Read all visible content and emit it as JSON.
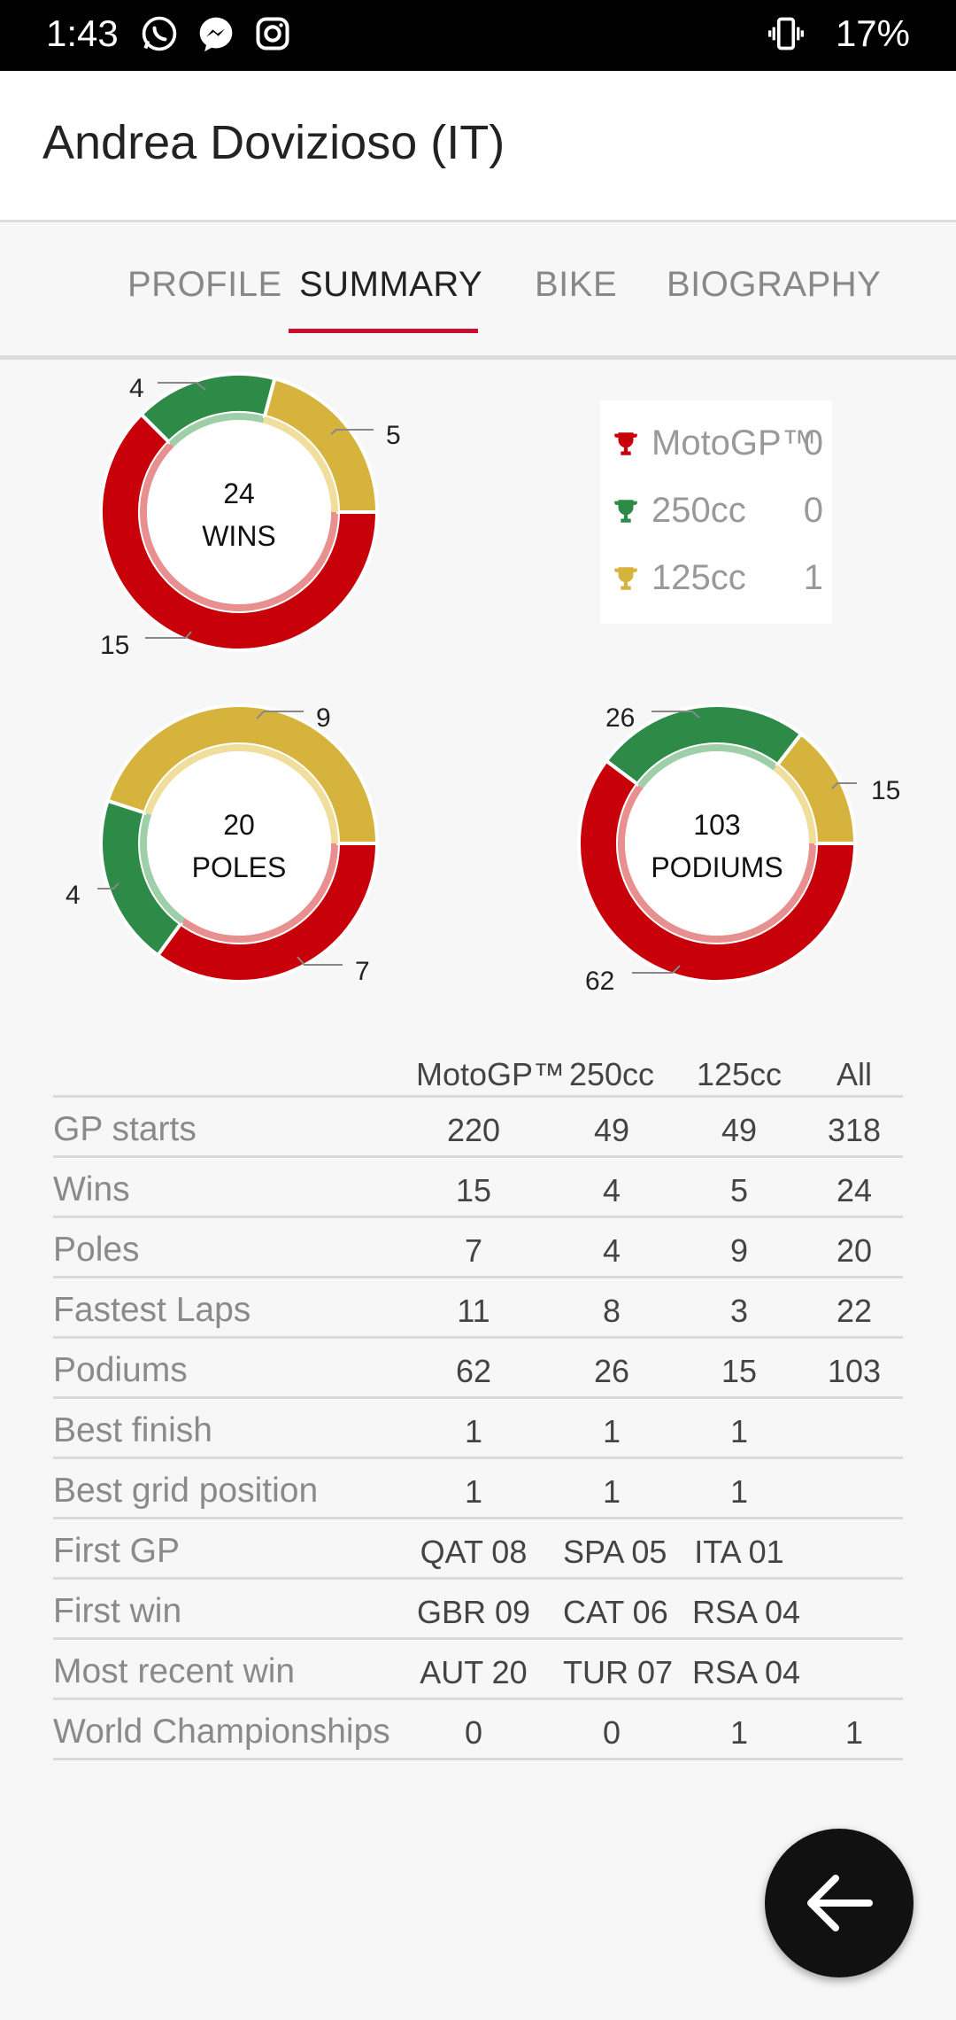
{
  "status_bar": {
    "time": "1:43",
    "icons": [
      "whatsapp-icon",
      "messenger-icon",
      "instagram-icon",
      "vibrate-icon"
    ],
    "battery": "17%"
  },
  "header": {
    "title": "Andrea Dovizioso (IT)"
  },
  "tabs": [
    {
      "label": "PROFILE",
      "active": false
    },
    {
      "label": "SUMMARY",
      "active": true
    },
    {
      "label": "BIKE",
      "active": false
    },
    {
      "label": "BIOGRAPHY",
      "active": false
    }
  ],
  "colors": {
    "motogp": "#c8000a",
    "c250": "#2e8b47",
    "c125": "#d6b33c",
    "accent": "#c8102e"
  },
  "chart_data": [
    {
      "type": "pie",
      "title": "24 WINS",
      "center_value": "24",
      "center_label": "WINS",
      "categories": [
        "MotoGP™",
        "250cc",
        "125cc"
      ],
      "values": [
        15,
        4,
        5
      ]
    },
    {
      "type": "pie",
      "title": "20 POLES",
      "center_value": "20",
      "center_label": "POLES",
      "categories": [
        "MotoGP™",
        "250cc",
        "125cc"
      ],
      "values": [
        7,
        4,
        9
      ]
    },
    {
      "type": "pie",
      "title": "103 PODIUMS",
      "center_value": "103",
      "center_label": "PODIUMS",
      "categories": [
        "MotoGP™",
        "250cc",
        "125cc"
      ],
      "values": [
        62,
        26,
        15
      ]
    }
  ],
  "legend": {
    "title": "World Championships",
    "items": [
      {
        "name": "MotoGP™",
        "value": "0",
        "color": "#c8000a",
        "icon": "trophy-icon"
      },
      {
        "name": "250cc",
        "value": "0",
        "color": "#2e8b47",
        "icon": "trophy-icon"
      },
      {
        "name": "125cc",
        "value": "1",
        "color": "#d6b33c",
        "icon": "trophy-icon"
      }
    ]
  },
  "table": {
    "headers": [
      "MotoGP™",
      "250cc",
      "125cc",
      "All"
    ],
    "rows": [
      {
        "label": "GP starts",
        "cells": [
          "220",
          "49",
          "49",
          "318"
        ]
      },
      {
        "label": "Wins",
        "cells": [
          "15",
          "4",
          "5",
          "24"
        ]
      },
      {
        "label": "Poles",
        "cells": [
          "7",
          "4",
          "9",
          "20"
        ]
      },
      {
        "label": "Fastest Laps",
        "cells": [
          "11",
          "8",
          "3",
          "22"
        ]
      },
      {
        "label": "Podiums",
        "cells": [
          "62",
          "26",
          "15",
          "103"
        ]
      },
      {
        "label": "Best finish",
        "cells": [
          "1",
          "1",
          "1",
          ""
        ]
      },
      {
        "label": "Best grid position",
        "cells": [
          "1",
          "1",
          "1",
          ""
        ]
      },
      {
        "label": "First GP",
        "cells": [
          "QAT 08",
          "SPA 05",
          "ITA 01",
          ""
        ]
      },
      {
        "label": "First win",
        "cells": [
          "GBR 09",
          "CAT 06",
          "RSA 04",
          ""
        ]
      },
      {
        "label": "Most recent win",
        "cells": [
          "AUT 20",
          "TUR 07",
          "RSA 04",
          ""
        ]
      },
      {
        "label": "World Championships",
        "cells": [
          "0",
          "0",
          "1",
          "1"
        ]
      }
    ]
  },
  "fab": {
    "icon": "arrow-left-icon"
  }
}
